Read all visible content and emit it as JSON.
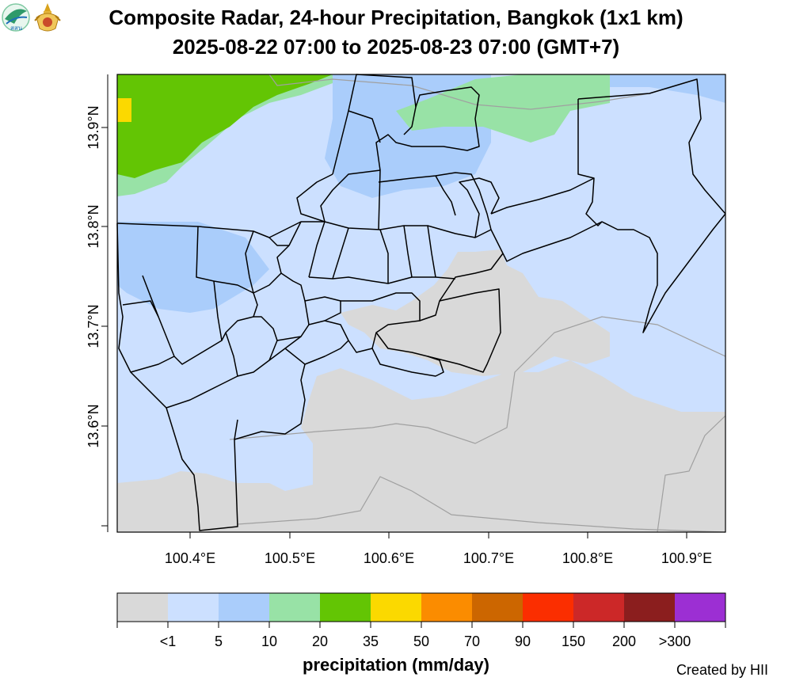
{
  "title_line1": "Composite Radar, 24-hour Precipitation, Bangkok (1x1 km)",
  "title_line2": "2025-08-22 07:00 to 2025-08-23 07:00 (GMT+7)",
  "logos": [
    {
      "name": "hii-logo",
      "text": "สสน"
    },
    {
      "name": "royal-emblem-logo",
      "text": ""
    }
  ],
  "map": {
    "x_ticks": [
      "100.4°E",
      "100.5°E",
      "100.6°E",
      "100.7°E",
      "100.8°E",
      "100.9°E"
    ],
    "y_ticks": [
      "13.9°N",
      "13.8°N",
      "13.7°N",
      "13.6°N"
    ],
    "colors": {
      "lt1": "#d9d9d9",
      "c1_5": "#cce0ff",
      "c5_10": "#aacdfb",
      "c10_20": "#98e2a6",
      "c20_35": "#63c504",
      "c35_50": "#fbd900",
      "district_line": "#000000",
      "province_line": "#a0a0a0"
    }
  },
  "legend": {
    "title": "precipitation (mm/day)",
    "labels": [
      "<1",
      "5",
      "10",
      "20",
      "35",
      "50",
      "70",
      "90",
      "150",
      "200",
      ">300"
    ],
    "colors": [
      "#d9d9d9",
      "#cce0ff",
      "#aacdfb",
      "#98e2a6",
      "#63c504",
      "#fbd900",
      "#fb8c00",
      "#cc6600",
      "#fb2e00",
      "#cc2828",
      "#8b1e1e",
      "#9c2fd3"
    ]
  },
  "credit": "Created by HII"
}
